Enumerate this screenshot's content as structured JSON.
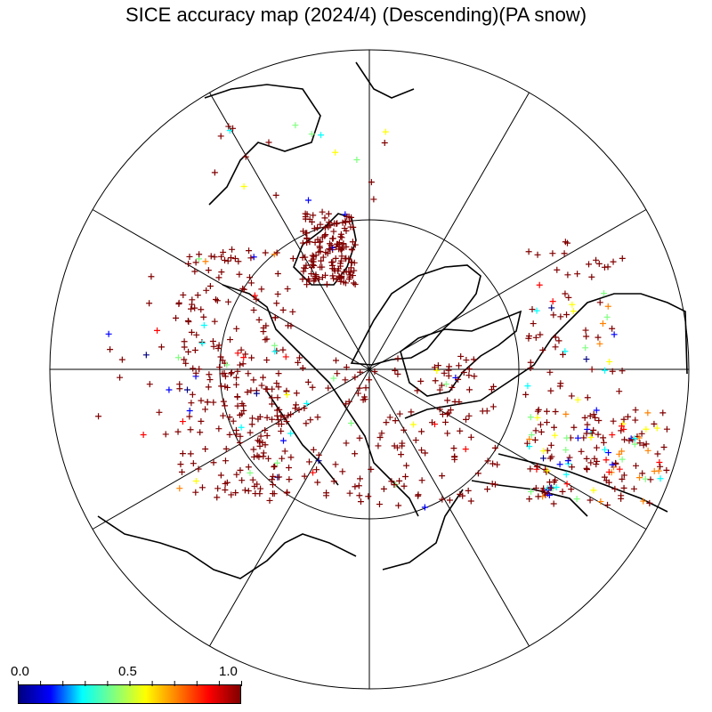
{
  "title": "SICE accuracy map (2024/4) (Descending)(PA snow)",
  "colorbar": {
    "min_label": "0.0",
    "mid_label": "0.5",
    "max_label": "1.0",
    "min": 0.0,
    "max": 1.0,
    "colors": [
      "#000080",
      "#0000ff",
      "#00ffff",
      "#80ff80",
      "#ffff00",
      "#ff8000",
      "#ff0000",
      "#800000"
    ]
  },
  "map": {
    "projection": "polar-stereographic-north",
    "parallels_deg": [
      90,
      60,
      30
    ],
    "meridian_spacing_deg": 30,
    "marker": "plus",
    "dominant_value": 1.0
  }
}
